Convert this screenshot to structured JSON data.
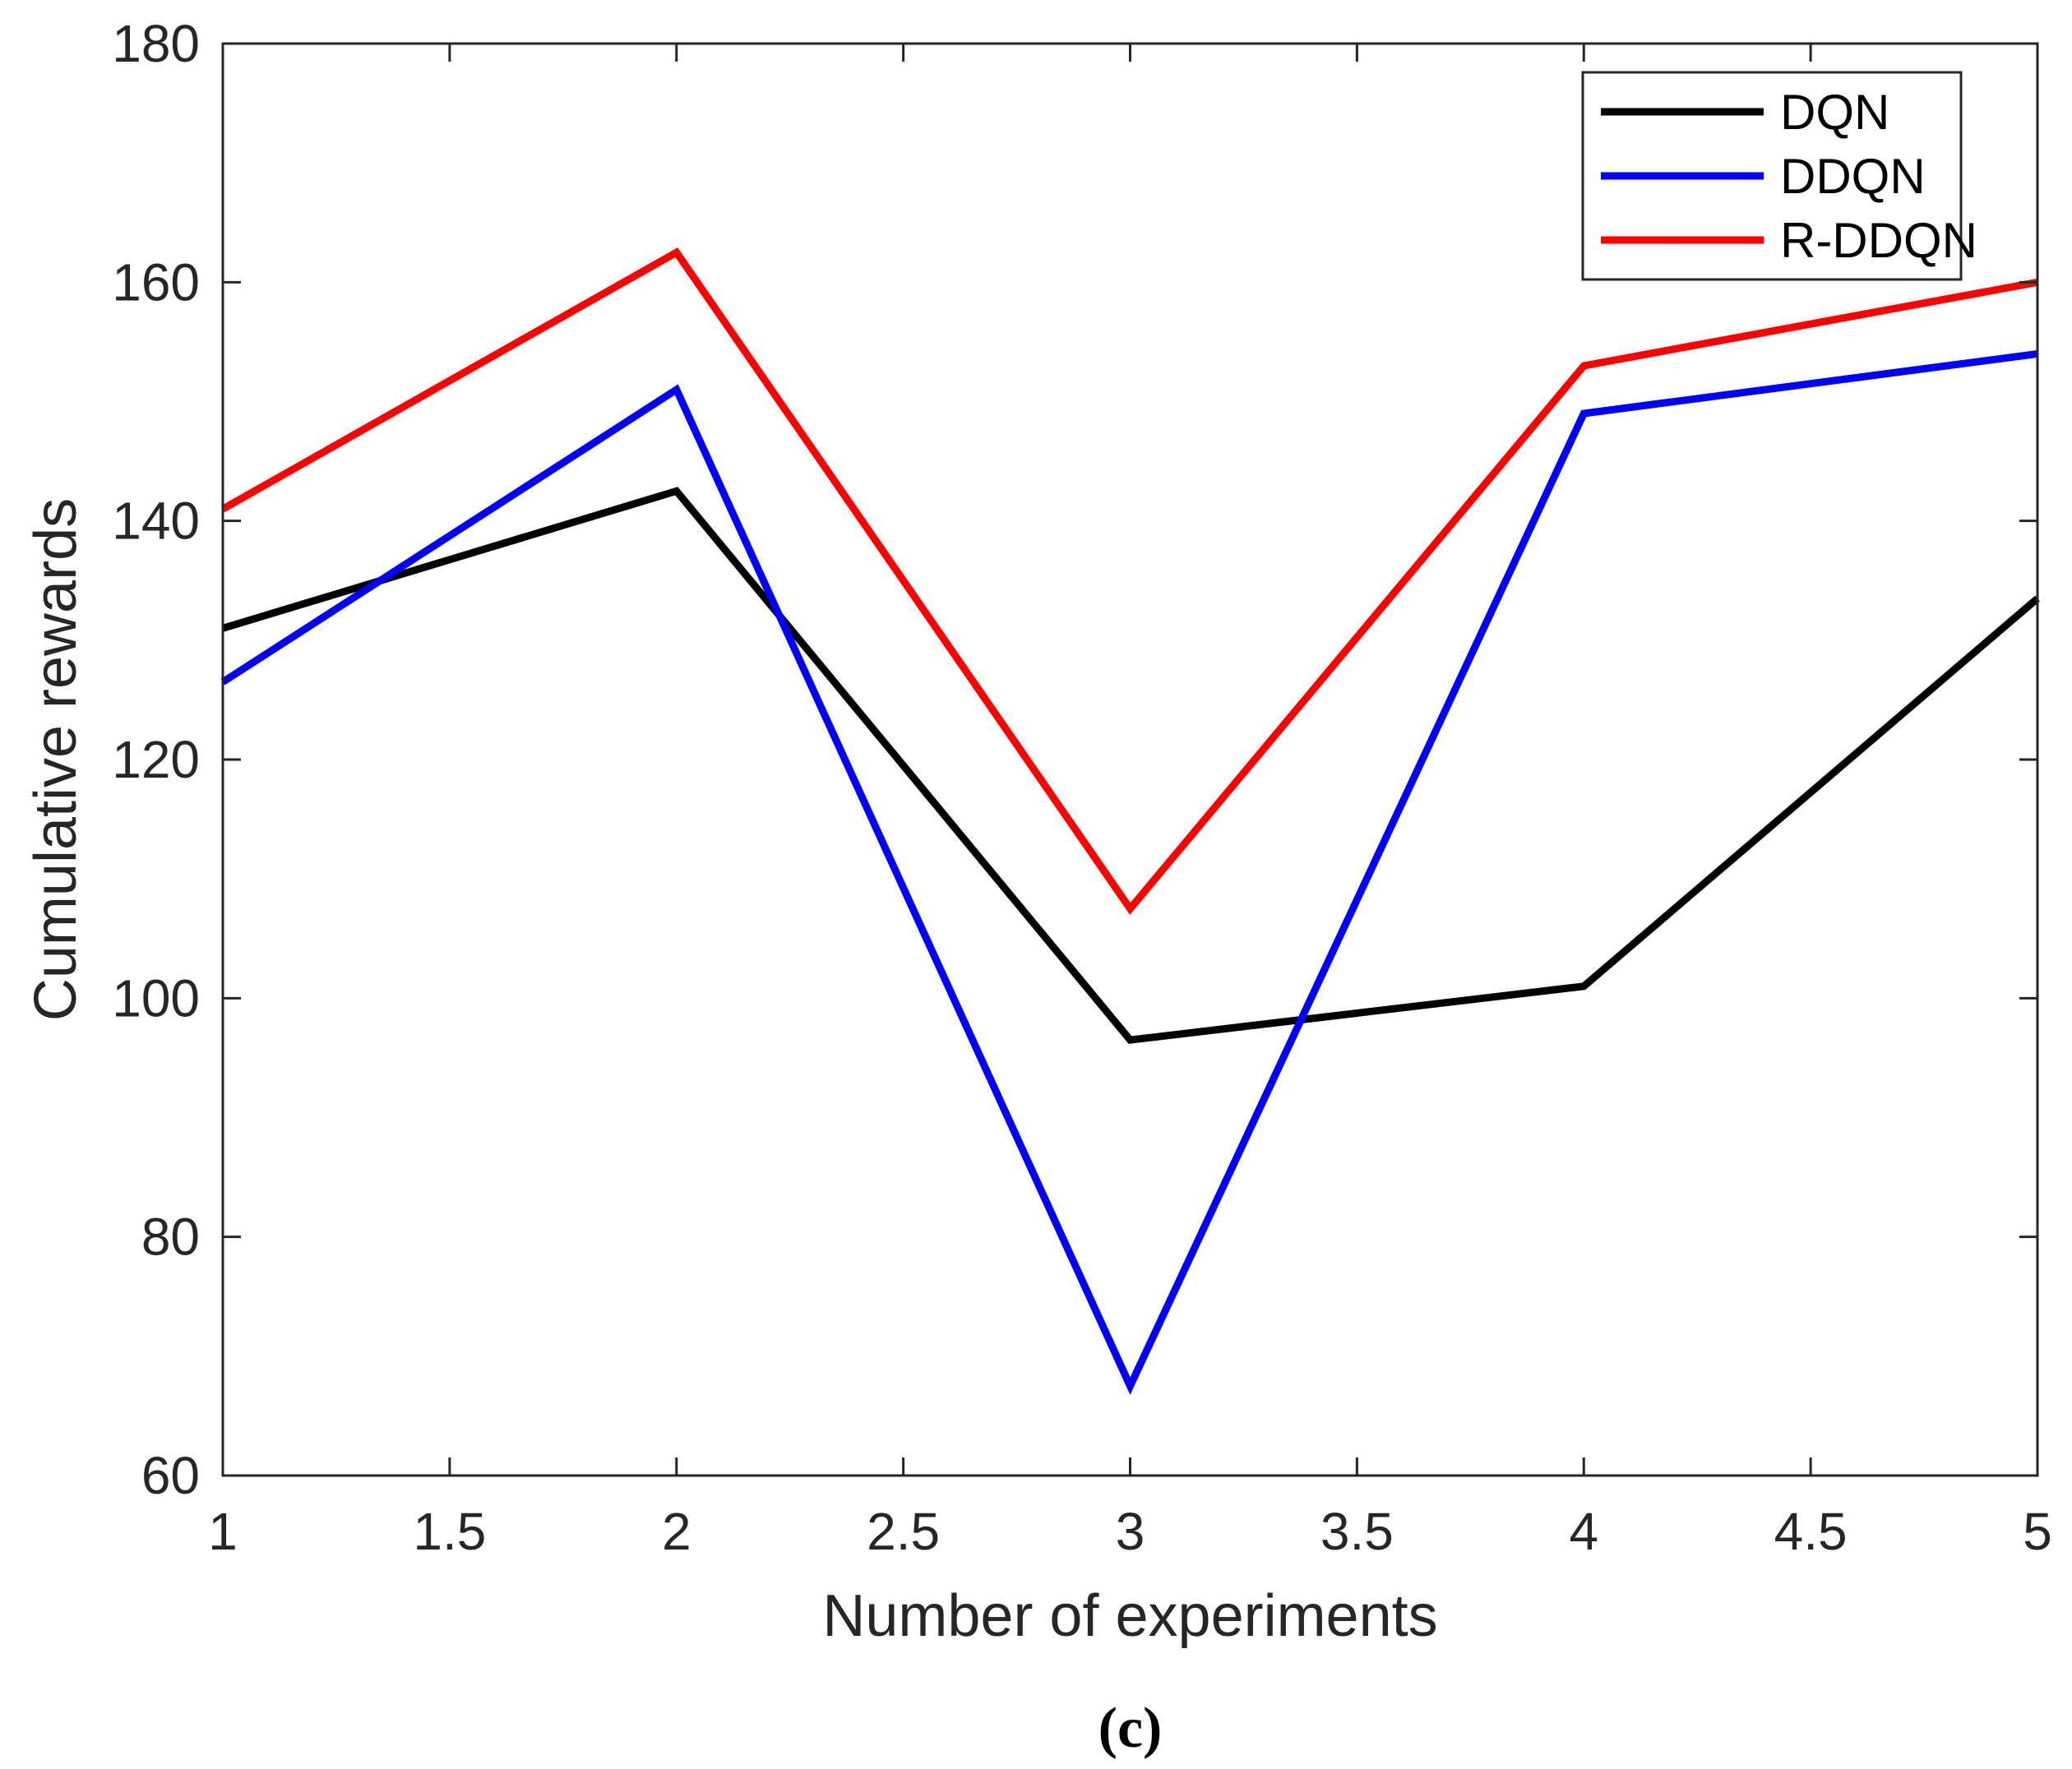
{
  "chart_data": {
    "type": "line",
    "title": "",
    "xlabel": "Number of experiments",
    "ylabel": "Cumulative rewards",
    "xlim": [
      1,
      5
    ],
    "ylim": [
      60,
      180
    ],
    "x_ticks": [
      1,
      1.5,
      2,
      2.5,
      3,
      3.5,
      4,
      4.5,
      5
    ],
    "x_tick_labels": [
      "1",
      "1.5",
      "2",
      "2.5",
      "3",
      "3.5",
      "4",
      "4.5",
      "5"
    ],
    "y_ticks": [
      60,
      80,
      100,
      120,
      140,
      160,
      180
    ],
    "y_tick_labels": [
      "60",
      "80",
      "100",
      "120",
      "140",
      "160",
      "180"
    ],
    "grid": false,
    "legend_position": "top-right",
    "x": [
      1,
      2,
      3,
      4,
      5
    ],
    "series": [
      {
        "name": "DQN",
        "color": "#000000",
        "values": [
          131,
          142.5,
          96.5,
          101,
          133.5
        ]
      },
      {
        "name": "DDQN",
        "color": "#0000ff",
        "values": [
          126.5,
          151,
          67.5,
          149,
          154
        ]
      },
      {
        "name": "R-DDQN",
        "color": "#ff0000",
        "values": [
          141,
          162.5,
          107.5,
          153,
          160
        ]
      }
    ],
    "caption": "(c)"
  }
}
